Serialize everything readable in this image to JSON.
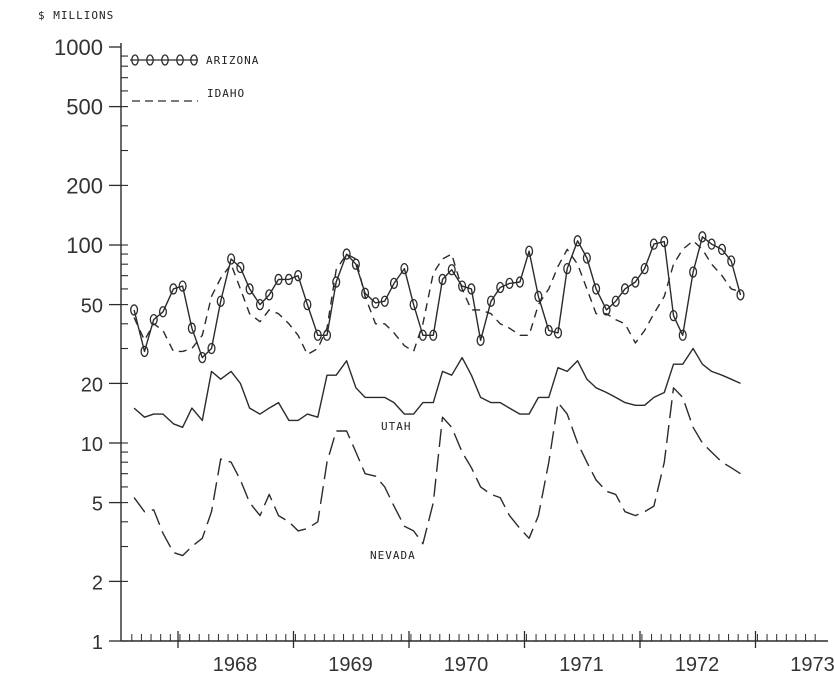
{
  "chart_data": {
    "type": "line",
    "ylabel": "$ MILLIONS",
    "y_scale": "log",
    "ylim": [
      1,
      1000
    ],
    "y_ticks": [
      1,
      2,
      5,
      10,
      20,
      50,
      100,
      200,
      500,
      1000
    ],
    "y_tick_labels": [
      "1",
      "2",
      "5",
      "10",
      "20",
      "50",
      "100",
      "200",
      "500",
      "1000"
    ],
    "xlim": [
      1967.6,
      1973.6
    ],
    "x_ticks": [
      1968,
      1969,
      1970,
      1971,
      1972,
      1973
    ],
    "x_tick_labels": [
      "1968",
      "1969",
      "1970",
      "1971",
      "1972",
      "1973"
    ],
    "legend": {
      "placement": "top-left",
      "entries": [
        "ARIZONA",
        "IDAHO"
      ]
    },
    "annotations": [
      "UTAH",
      "NEVADA"
    ],
    "series": [
      {
        "name": "ARIZONA",
        "style": "solid-with-circles",
        "x": [
          1967.62,
          1967.71,
          1967.79,
          1967.87,
          1967.96,
          1968.04,
          1968.12,
          1968.21,
          1968.29,
          1968.37,
          1968.46,
          1968.54,
          1968.62,
          1968.71,
          1968.79,
          1968.87,
          1968.96,
          1969.04,
          1969.12,
          1969.21,
          1969.29,
          1969.37,
          1969.46,
          1969.54,
          1969.62,
          1969.71,
          1969.79,
          1969.87,
          1969.96,
          1970.04,
          1970.12,
          1970.21,
          1970.29,
          1970.37,
          1970.46,
          1970.54,
          1970.62,
          1970.71,
          1970.79,
          1970.87,
          1970.96,
          1971.04,
          1971.12,
          1971.21,
          1971.29,
          1971.37,
          1971.46,
          1971.54,
          1971.62,
          1971.71,
          1971.79,
          1971.87,
          1971.96,
          1972.04,
          1972.12,
          1972.21,
          1972.29,
          1972.37,
          1972.46,
          1972.54,
          1972.62,
          1972.71,
          1972.79,
          1972.87
        ],
        "y": [
          47,
          29,
          42,
          46,
          60,
          62,
          38,
          27,
          30,
          52,
          85,
          77,
          60,
          50,
          56,
          67,
          67,
          70,
          50,
          35,
          35,
          65,
          90,
          80,
          57,
          51,
          52,
          64,
          76,
          50,
          35,
          35,
          67,
          75,
          62,
          60,
          33,
          52,
          61,
          64,
          65,
          93,
          55,
          37,
          36,
          76,
          105,
          86,
          60,
          47,
          52,
          60,
          65,
          76,
          101,
          104,
          44,
          35,
          73,
          110,
          101,
          95,
          83,
          56
        ]
      },
      {
        "name": "IDAHO",
        "style": "short-dash",
        "x": [
          1967.62,
          1967.71,
          1967.79,
          1967.87,
          1967.96,
          1968.04,
          1968.12,
          1968.21,
          1968.29,
          1968.37,
          1968.46,
          1968.54,
          1968.62,
          1968.71,
          1968.79,
          1968.87,
          1968.96,
          1969.04,
          1969.12,
          1969.21,
          1969.29,
          1969.37,
          1969.46,
          1969.54,
          1969.62,
          1969.71,
          1969.79,
          1969.87,
          1969.96,
          1970.04,
          1970.12,
          1970.21,
          1970.29,
          1970.37,
          1970.46,
          1970.54,
          1970.62,
          1970.71,
          1970.79,
          1970.87,
          1970.96,
          1971.04,
          1971.12,
          1971.21,
          1971.29,
          1971.37,
          1971.46,
          1971.54,
          1971.62,
          1971.71,
          1971.79,
          1971.87,
          1971.96,
          1972.04,
          1972.12,
          1972.21,
          1972.29,
          1972.37,
          1972.46,
          1972.54,
          1972.62,
          1972.71,
          1972.79,
          1972.87
        ],
        "y": [
          43,
          33,
          40,
          37,
          29,
          29,
          30,
          35,
          55,
          68,
          80,
          60,
          45,
          41,
          47,
          45,
          40,
          35,
          28,
          30,
          38,
          75,
          90,
          85,
          55,
          40,
          40,
          36,
          31,
          29,
          40,
          72,
          85,
          90,
          60,
          47,
          47,
          45,
          40,
          38,
          35,
          35,
          50,
          60,
          78,
          95,
          80,
          60,
          45,
          45,
          42,
          40,
          32,
          37,
          45,
          55,
          80,
          95,
          105,
          95,
          80,
          70,
          60,
          58
        ]
      },
      {
        "name": "UTAH",
        "style": "solid",
        "x": [
          1967.62,
          1967.71,
          1967.79,
          1967.87,
          1967.96,
          1968.04,
          1968.12,
          1968.21,
          1968.29,
          1968.37,
          1968.46,
          1968.54,
          1968.62,
          1968.71,
          1968.79,
          1968.87,
          1968.96,
          1969.04,
          1969.12,
          1969.21,
          1969.29,
          1969.37,
          1969.46,
          1969.54,
          1969.62,
          1969.71,
          1969.79,
          1969.87,
          1969.96,
          1970.04,
          1970.12,
          1970.21,
          1970.29,
          1970.37,
          1970.46,
          1970.54,
          1970.62,
          1970.71,
          1970.79,
          1970.87,
          1970.96,
          1971.04,
          1971.12,
          1971.21,
          1971.29,
          1971.37,
          1971.46,
          1971.54,
          1971.62,
          1971.71,
          1971.79,
          1971.87,
          1971.96,
          1972.04,
          1972.12,
          1972.21,
          1972.29,
          1972.37,
          1972.46,
          1972.54,
          1972.62,
          1972.71,
          1972.79,
          1972.87
        ],
        "y": [
          15,
          13.5,
          14,
          14,
          12.5,
          12,
          15,
          13,
          23,
          21,
          23,
          20,
          15,
          14,
          15,
          16,
          13,
          13,
          14,
          13.5,
          22,
          22,
          26,
          19,
          17,
          17,
          17,
          16,
          14,
          14,
          16,
          16,
          23,
          22,
          27,
          22,
          17,
          16,
          16,
          15,
          14,
          14,
          17,
          17,
          24,
          23,
          26,
          21,
          19,
          18,
          17,
          16,
          15.5,
          15.5,
          17,
          18,
          25,
          25,
          30,
          25,
          23,
          22,
          21,
          20
        ]
      },
      {
        "name": "NEVADA",
        "style": "long-dash",
        "x": [
          1967.62,
          1967.71,
          1967.79,
          1967.87,
          1967.96,
          1968.04,
          1968.12,
          1968.21,
          1968.29,
          1968.37,
          1968.46,
          1968.54,
          1968.62,
          1968.71,
          1968.79,
          1968.87,
          1968.96,
          1969.04,
          1969.12,
          1969.21,
          1969.29,
          1969.37,
          1969.46,
          1969.54,
          1969.62,
          1969.71,
          1969.79,
          1969.87,
          1969.96,
          1970.04,
          1970.12,
          1970.21,
          1970.29,
          1970.37,
          1970.46,
          1970.54,
          1970.62,
          1970.71,
          1970.79,
          1970.87,
          1970.96,
          1971.04,
          1971.12,
          1971.21,
          1971.29,
          1971.37,
          1971.46,
          1971.54,
          1971.62,
          1971.71,
          1971.79,
          1971.87,
          1971.96,
          1972.04,
          1972.12,
          1972.21,
          1972.29,
          1972.37,
          1972.46,
          1972.54,
          1972.62,
          1972.71,
          1972.79,
          1972.87
        ],
        "y": [
          5.3,
          4.5,
          4.6,
          3.5,
          2.8,
          2.7,
          3,
          3.3,
          4.5,
          8.3,
          8,
          6.5,
          5,
          4.3,
          5.5,
          4.3,
          4,
          3.6,
          3.7,
          4,
          8,
          11.5,
          11.5,
          9,
          7,
          6.8,
          6,
          4.8,
          3.8,
          3.6,
          3.1,
          5,
          13.5,
          12,
          9,
          7.5,
          6,
          5.5,
          5.3,
          4.3,
          3.7,
          3.3,
          4.3,
          8,
          16,
          14,
          10,
          8,
          6.5,
          5.7,
          5.5,
          4.5,
          4.3,
          4.5,
          4.8,
          8,
          19,
          17,
          12,
          10,
          9,
          8,
          7.5,
          7
        ]
      }
    ]
  }
}
